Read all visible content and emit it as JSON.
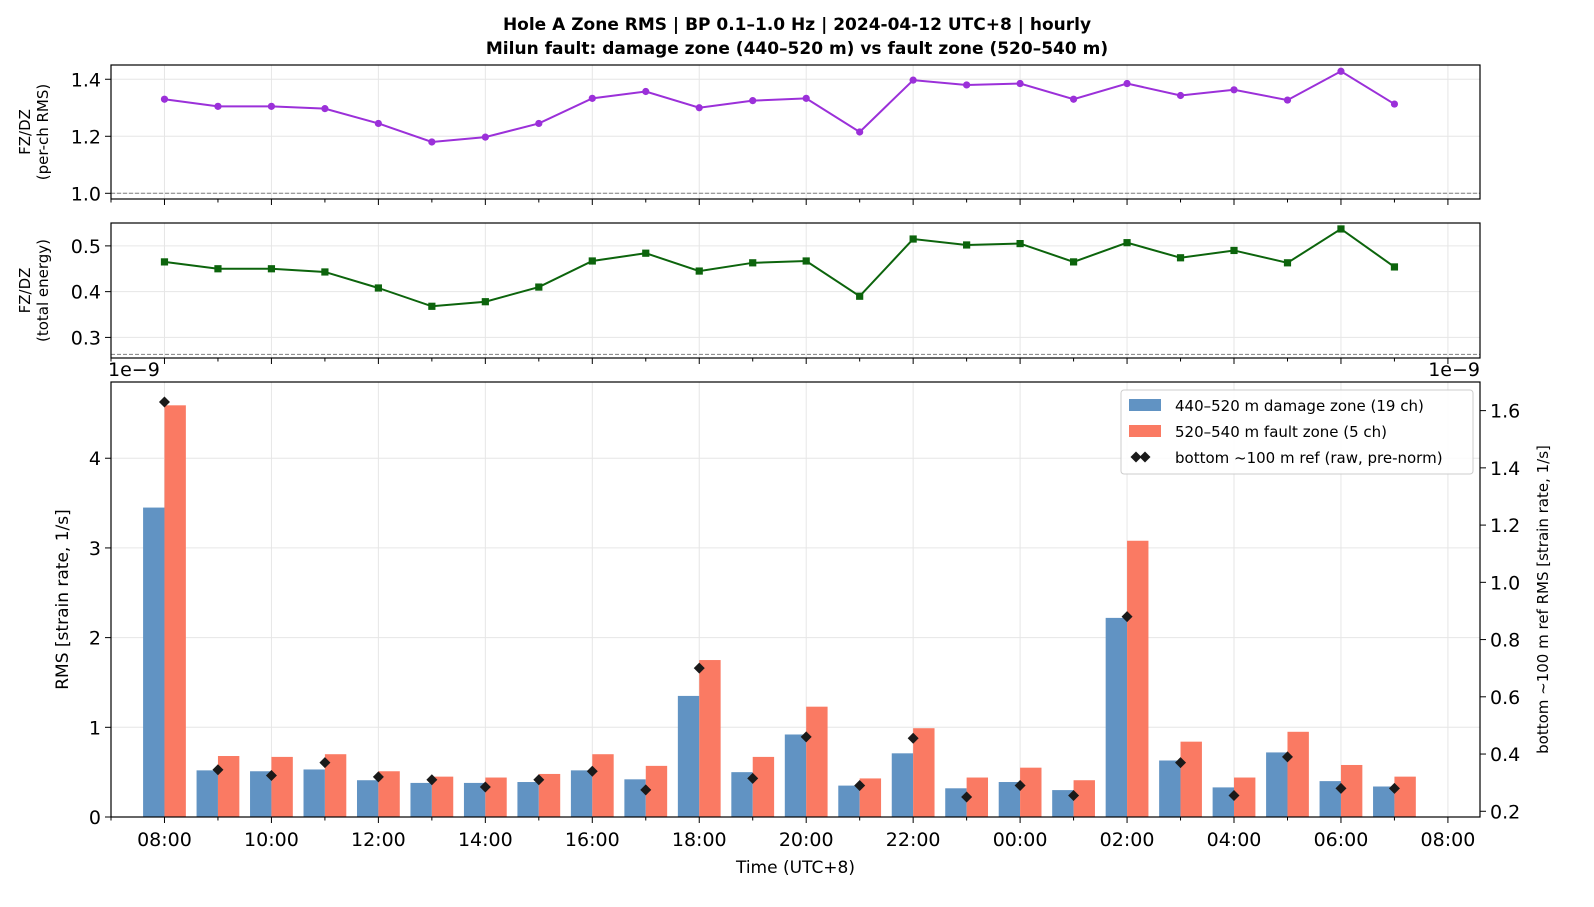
{
  "title_line1": "Hole A Zone RMS  |  BP 0.1–1.0 Hz  |  2024-04-12 UTC+8  |  hourly",
  "title_line2": "Milun fault: damage zone (440–520 m) vs fault zone (520–540 m)",
  "colors": {
    "damage_zone": "#6193c3",
    "fault_zone": "#fa7a63",
    "ref_marker": "#1a1a1a",
    "ratio_rms": "#9b30d9",
    "ratio_energy": "#0c640c",
    "grid": "#e6e6e6"
  },
  "chart_data": [
    {
      "type": "line",
      "name": "rms-ratio",
      "ylabel_line1": "FZ/DZ",
      "ylabel_line2": "(per-ch RMS)",
      "ylim": [
        0.98,
        1.45
      ],
      "yticks": [
        1.0,
        1.2,
        1.4
      ],
      "ytick_labels": [
        "1.0",
        "1.2",
        "1.4"
      ],
      "reference_line": 1.0,
      "grid": true,
      "x": [
        0,
        1,
        2,
        3,
        4,
        5,
        6,
        7,
        8,
        9,
        10,
        11,
        12,
        13,
        14,
        15,
        16,
        17,
        18,
        19,
        20,
        21,
        22,
        23
      ],
      "values": [
        1.33,
        1.305,
        1.305,
        1.297,
        1.245,
        1.18,
        1.197,
        1.245,
        1.333,
        1.357,
        1.3,
        1.325,
        1.333,
        1.215,
        1.397,
        1.38,
        1.385,
        1.33,
        1.385,
        1.343,
        1.363,
        1.327,
        1.428,
        1.313
      ]
    },
    {
      "type": "line",
      "name": "energy-ratio",
      "ylabel_line1": "FZ/DZ",
      "ylabel_line2": "(total energy)",
      "ylim": [
        0.255,
        0.55
      ],
      "yticks": [
        0.3,
        0.4,
        0.5
      ],
      "ytick_labels": [
        "0.3",
        "0.4",
        "0.5"
      ],
      "reference_line": 0.263,
      "grid": true,
      "x": [
        0,
        1,
        2,
        3,
        4,
        5,
        6,
        7,
        8,
        9,
        10,
        11,
        12,
        13,
        14,
        15,
        16,
        17,
        18,
        19,
        20,
        21,
        22,
        23
      ],
      "values": [
        0.465,
        0.45,
        0.45,
        0.443,
        0.408,
        0.368,
        0.378,
        0.41,
        0.467,
        0.484,
        0.445,
        0.463,
        0.467,
        0.39,
        0.515,
        0.502,
        0.505,
        0.465,
        0.507,
        0.474,
        0.49,
        0.463,
        0.537,
        0.454
      ]
    },
    {
      "type": "bar",
      "name": "zone-rms",
      "xlabel": "Time (UTC+8)",
      "ylabel": "RMS  [strain rate, 1/s]",
      "ylabel_right": "bottom ~100 m ref RMS  [strain rate, 1/s]",
      "offset_left": "1e−9",
      "offset_right": "1e−9",
      "ylim": [
        0,
        4.85
      ],
      "yticks": [
        0,
        1,
        2,
        3,
        4
      ],
      "ytick_labels": [
        "0",
        "1",
        "2",
        "3",
        "4"
      ],
      "ylim_right": [
        0.18,
        1.7
      ],
      "yticks_right": [
        0.2,
        0.4,
        0.6,
        0.8,
        1.0,
        1.2,
        1.4,
        1.6
      ],
      "ytick_labels_right": [
        "0.2",
        "0.4",
        "0.6",
        "0.8",
        "1.0",
        "1.2",
        "1.4",
        "1.6"
      ],
      "xlim": [
        -1.0,
        24.6
      ],
      "xticks": [
        0,
        2,
        4,
        6,
        8,
        10,
        12,
        14,
        16,
        18,
        20,
        22,
        24
      ],
      "xtick_labels": [
        "08:00",
        "10:00",
        "12:00",
        "14:00",
        "16:00",
        "18:00",
        "20:00",
        "22:00",
        "00:00",
        "02:00",
        "04:00",
        "06:00",
        "08:00"
      ],
      "grid": true,
      "legend_position": "top-right",
      "x": [
        0,
        1,
        2,
        3,
        4,
        5,
        6,
        7,
        8,
        9,
        10,
        11,
        12,
        13,
        14,
        15,
        16,
        17,
        18,
        19,
        20,
        21,
        22,
        23
      ],
      "series": [
        {
          "name": "440–520 m  damage zone (19 ch)",
          "kind": "bar",
          "values": [
            3.45,
            0.52,
            0.51,
            0.53,
            0.41,
            0.38,
            0.38,
            0.39,
            0.52,
            0.42,
            1.35,
            0.5,
            0.92,
            0.35,
            0.71,
            0.32,
            0.39,
            0.3,
            2.22,
            0.63,
            0.33,
            0.72,
            0.4,
            0.34
          ]
        },
        {
          "name": "520–540 m  fault zone (5 ch)",
          "kind": "bar",
          "values": [
            4.59,
            0.68,
            0.67,
            0.7,
            0.51,
            0.45,
            0.44,
            0.48,
            0.7,
            0.57,
            1.75,
            0.67,
            1.23,
            0.43,
            0.99,
            0.44,
            0.55,
            0.41,
            3.08,
            0.84,
            0.44,
            0.95,
            0.58,
            0.45
          ]
        },
        {
          "name": "bottom ~100 m ref (raw, pre-norm)",
          "kind": "marker",
          "axis": "right",
          "x": [
            0,
            1,
            2,
            3,
            4,
            5,
            6,
            7,
            8,
            9,
            10,
            11,
            12,
            13,
            14,
            15,
            16,
            17,
            18,
            19,
            20,
            21,
            22,
            23
          ],
          "values": [
            1.63,
            0.345,
            0.325,
            0.37,
            0.32,
            0.31,
            0.285,
            0.31,
            0.34,
            0.275,
            0.7,
            0.315,
            0.46,
            0.29,
            0.455,
            0.25,
            0.29,
            0.255,
            0.88,
            0.37,
            0.255,
            0.39,
            0.28,
            0.28
          ]
        }
      ]
    }
  ]
}
